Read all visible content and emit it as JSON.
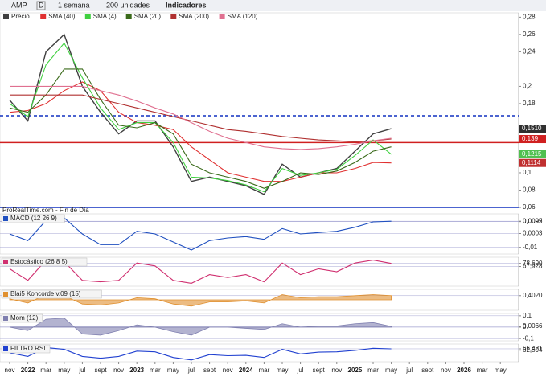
{
  "toolbar": {
    "symbol": "AMP",
    "mode": "D",
    "period": "1 semana",
    "units": "200 unidades",
    "indicators": "Indicadores"
  },
  "chart_data": [
    {
      "type": "line",
      "source": "ProRealTime.com - Fin de Día",
      "categories": [
        "nov",
        "2022",
        "mar",
        "may",
        "jul",
        "sept",
        "nov",
        "2023",
        "mar",
        "may",
        "jul",
        "sept",
        "nov",
        "2024",
        "mar",
        "may",
        "jul",
        "sept",
        "nov",
        "2025",
        "mar",
        "may",
        "jul",
        "sept",
        "nov",
        "2026",
        "mar",
        "may"
      ],
      "ylim": [
        0.06,
        0.285
      ],
      "yticks": [
        {
          "value": 0.28,
          "label": "0,28"
        },
        {
          "value": 0.26,
          "label": "0,26"
        },
        {
          "value": 0.24,
          "label": "0,24"
        },
        {
          "value": 0.2,
          "label": "0,2"
        },
        {
          "value": 0.18,
          "label": "0,18"
        },
        {
          "value": 0.1,
          "label": "0,1"
        },
        {
          "value": 0.08,
          "label": "0,08"
        },
        {
          "value": 0.06,
          "label": "0,06"
        }
      ],
      "hlines": [
        {
          "value": 0.166,
          "color": "#1030c0",
          "dashed": true
        },
        {
          "value": 0.135,
          "color": "#d02020",
          "dashed": false
        },
        {
          "value": 0.06,
          "color": "#1030c0",
          "dashed": false
        }
      ],
      "price_labels": [
        {
          "value": 0.151,
          "label": "0,1510",
          "color": "#303030"
        },
        {
          "value": 0.139,
          "label": "0,139",
          "color": "#d02020"
        },
        {
          "value": 0.1215,
          "label": "0,1215",
          "color": "#50c050"
        },
        {
          "value": 0.1114,
          "label": "0,1114",
          "color": "#c03030"
        }
      ],
      "series": [
        {
          "name": "Precio",
          "color": "#404040",
          "values": [
            0.184,
            0.16,
            0.24,
            0.26,
            0.2,
            0.17,
            0.145,
            0.16,
            0.16,
            0.13,
            0.09,
            0.095,
            0.09,
            0.085,
            0.075,
            0.11,
            0.095,
            0.1,
            0.105,
            0.125,
            0.145,
            0.151,
            null,
            null,
            null,
            null,
            null,
            null
          ]
        },
        {
          "name": "SMA (40)",
          "color": "#e03030",
          "values": [
            0.17,
            0.172,
            0.18,
            0.195,
            0.205,
            0.195,
            0.17,
            0.158,
            0.155,
            0.15,
            0.13,
            0.115,
            0.1,
            0.095,
            0.09,
            0.09,
            0.095,
            0.1,
            0.1,
            0.105,
            0.112,
            0.1114,
            null,
            null,
            null,
            null,
            null,
            null
          ]
        },
        {
          "name": "SMA (4)",
          "color": "#40d040",
          "values": [
            0.18,
            0.165,
            0.225,
            0.25,
            0.21,
            0.175,
            0.15,
            0.158,
            0.158,
            0.135,
            0.095,
            0.094,
            0.091,
            0.086,
            0.078,
            0.105,
            0.097,
            0.1,
            0.104,
            0.12,
            0.138,
            0.1215,
            null,
            null,
            null,
            null,
            null,
            null
          ]
        },
        {
          "name": "SMA (20)",
          "color": "#3a6a1a",
          "values": [
            0.175,
            0.17,
            0.19,
            0.22,
            0.22,
            0.185,
            0.155,
            0.152,
            0.158,
            0.145,
            0.11,
            0.1,
            0.095,
            0.09,
            0.082,
            0.09,
            0.1,
            0.098,
            0.102,
            0.112,
            0.125,
            0.13,
            null,
            null,
            null,
            null,
            null,
            null
          ]
        },
        {
          "name": "SMA (200)",
          "color": "#b03030",
          "values": [
            0.19,
            0.19,
            0.19,
            0.19,
            0.19,
            0.185,
            0.18,
            0.175,
            0.17,
            0.165,
            0.16,
            0.155,
            0.15,
            0.148,
            0.145,
            0.142,
            0.14,
            0.138,
            0.137,
            0.136,
            0.137,
            0.139,
            null,
            null,
            null,
            null,
            null,
            null
          ]
        },
        {
          "name": "SMA (120)",
          "color": "#e07090",
          "values": [
            0.2,
            0.2,
            0.2,
            0.2,
            0.2,
            0.195,
            0.19,
            0.183,
            0.175,
            0.168,
            0.158,
            0.148,
            0.14,
            0.135,
            0.13,
            0.128,
            0.127,
            0.128,
            0.13,
            0.133,
            0.137,
            0.14,
            null,
            null,
            null,
            null,
            null,
            null
          ]
        }
      ]
    },
    {
      "type": "line",
      "title": "MACD (12 26 9)",
      "ylim": [
        -0.015,
        0.015
      ],
      "yticks": [
        {
          "value": 0.0095,
          "label": "0,0095"
        },
        {
          "value": 0.0092,
          "label": "0,0092"
        },
        {
          "value": 0.0003,
          "label": "0,0003"
        },
        {
          "value": -0.01,
          "label": "-0,01"
        }
      ],
      "series": [
        {
          "color": "#2050c0",
          "values": [
            0,
            -0.005,
            0.01,
            0.012,
            0,
            -0.008,
            -0.008,
            0.002,
            0,
            -0.006,
            -0.012,
            -0.005,
            -0.003,
            -0.002,
            -0.004,
            0.004,
            0,
            0.001,
            0.002,
            0.005,
            0.009,
            0.0095,
            null,
            null,
            null,
            null,
            null,
            null
          ]
        }
      ]
    },
    {
      "type": "line",
      "title": "Estocástico (26 8 5)",
      "ylim": [
        0,
        100
      ],
      "yticks": [
        {
          "value": 78.69,
          "label": "78,690"
        },
        {
          "value": 67.928,
          "label": "67,928"
        }
      ],
      "series": [
        {
          "color": "#d03070",
          "values": [
            60,
            20,
            90,
            85,
            20,
            15,
            20,
            80,
            70,
            20,
            10,
            40,
            30,
            40,
            15,
            80,
            40,
            60,
            50,
            80,
            90,
            78.69,
            null,
            null,
            null,
            null,
            null,
            null
          ]
        }
      ]
    },
    {
      "type": "area",
      "title": "Blai5 Koncorde v.09 (15)",
      "ylim": [
        -1,
        1
      ],
      "yticks": [
        {
          "value": 0.402,
          "label": "0,4020"
        }
      ],
      "series": [
        {
          "color": "#e09030",
          "values": [
            0.1,
            -0.3,
            0.5,
            0.4,
            -0.4,
            -0.5,
            -0.3,
            0.2,
            0.1,
            -0.4,
            -0.6,
            -0.2,
            -0.2,
            -0.1,
            -0.3,
            0.5,
            0.2,
            0.3,
            0.3,
            0.4,
            0.5,
            0.402,
            null,
            null,
            null,
            null,
            null,
            null
          ]
        }
      ]
    },
    {
      "type": "area",
      "title": "Mom (12)",
      "ylim": [
        -0.12,
        0.12
      ],
      "yticks": [
        {
          "value": 0.1,
          "label": "0,1"
        },
        0,
        {
          "value": 0.0066,
          "label": "0,0066"
        },
        {
          "value": -0.1,
          "label": "-0,1"
        }
      ],
      "series": [
        {
          "color": "#8080b0",
          "values": [
            0,
            -0.03,
            0.07,
            0.08,
            -0.06,
            -0.07,
            -0.03,
            0.02,
            0,
            -0.04,
            -0.07,
            0,
            0,
            -0.01,
            -0.02,
            0.03,
            0,
            0.01,
            0.01,
            0.03,
            0.04,
            0.0066,
            null,
            null,
            null,
            null,
            null,
            null
          ]
        }
      ]
    },
    {
      "type": "line",
      "title": "FILTRO RSI",
      "ylim": [
        30,
        80
      ],
      "yticks": [
        {
          "value": 66.421,
          "label": "66,421"
        },
        {
          "value": 62.594,
          "label": "62,594"
        }
      ],
      "series": [
        {
          "color": "#2040d0",
          "values": [
            55,
            45,
            70,
            65,
            45,
            40,
            45,
            60,
            58,
            42,
            35,
            50,
            47,
            48,
            42,
            65,
            52,
            57,
            58,
            62,
            68,
            66.421,
            null,
            null,
            null,
            null,
            null,
            null
          ]
        }
      ]
    }
  ]
}
